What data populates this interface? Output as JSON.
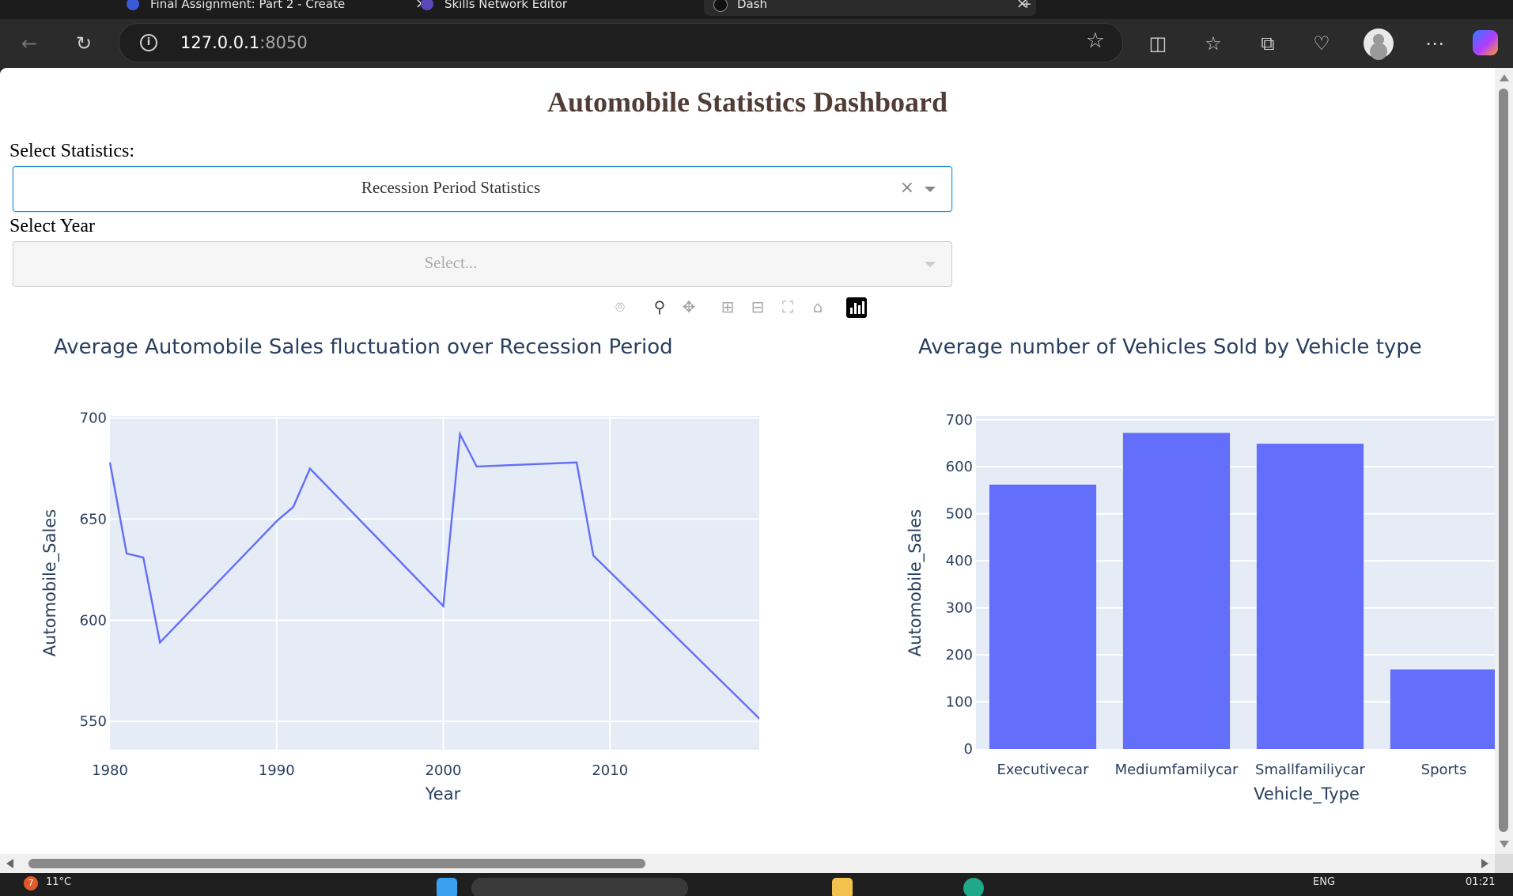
{
  "browser": {
    "tabs": [
      {
        "title": "Final Assignment: Part 2 - Create"
      },
      {
        "title": "Skills Network Editor"
      },
      {
        "title": "Dash"
      }
    ],
    "address": {
      "host": "127.0.0.1",
      "port": ":8050"
    }
  },
  "dashboard": {
    "title": "Automobile Statistics Dashboard",
    "select_stats_label": "Select Statistics:",
    "select_stats_value": "Recession Period Statistics",
    "select_year_label": "Select Year",
    "select_year_placeholder": "Select...",
    "clear_glyph": "×"
  },
  "colors": {
    "series": "#636efa",
    "plot_bg": "#e5ecf6",
    "title": "#503d36",
    "text": "#2a3f5f"
  },
  "chart_data": [
    {
      "type": "line",
      "title": "Average Automobile Sales fluctuation over Recession Period",
      "xlabel": "Year",
      "ylabel": "Automobile_Sales",
      "x": [
        1980,
        1981,
        1982,
        1983,
        1990,
        1991,
        1992,
        2000,
        2001,
        2002,
        2008,
        2009,
        2020
      ],
      "y": [
        678,
        633,
        631,
        589,
        649,
        656,
        675,
        607,
        692,
        676,
        678,
        632,
        543
      ],
      "xlim": [
        1980,
        2020
      ],
      "ylim": [
        536,
        701
      ],
      "xticks": [
        1980,
        1990,
        2000,
        2010,
        2020
      ],
      "yticks": [
        550,
        600,
        650,
        700
      ]
    },
    {
      "type": "bar",
      "title": "Average number of Vehicles Sold by Vehicle type",
      "xlabel": "Vehicle_Type",
      "ylabel": "Automobile_Sales",
      "categories": [
        "Executivecar",
        "Mediumfamilycar",
        "Smallfamiliycar",
        "Sports"
      ],
      "values": [
        562,
        672,
        649,
        169
      ],
      "ylim": [
        0,
        708
      ],
      "yticks": [
        0,
        100,
        200,
        300,
        400,
        500,
        600,
        700
      ]
    }
  ],
  "taskbar": {
    "weather": "11°C",
    "notification_count": "7",
    "language": "ENG",
    "time": "01:21"
  }
}
